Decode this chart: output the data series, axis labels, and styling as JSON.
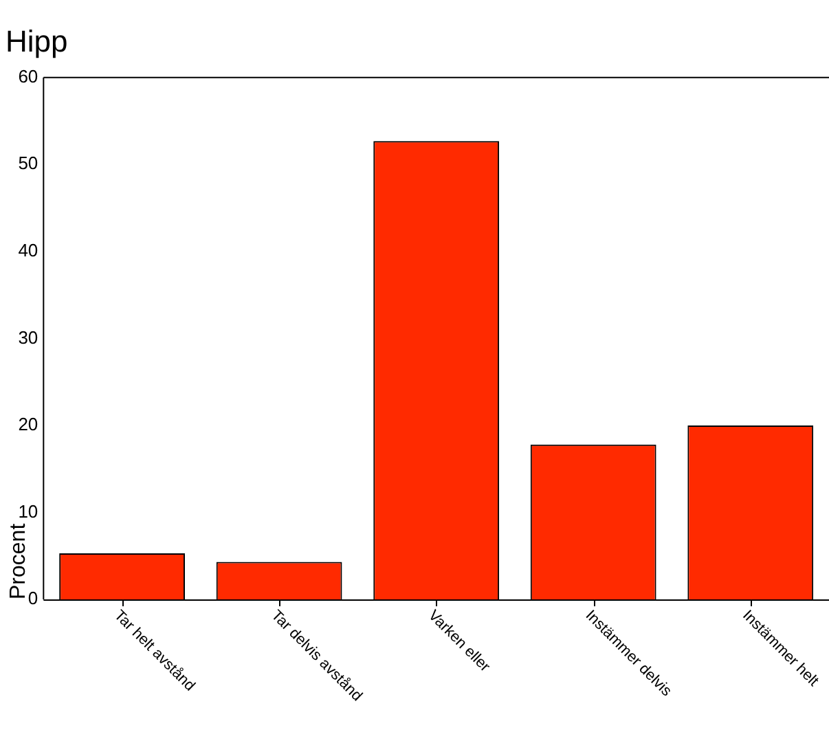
{
  "chart_data": {
    "type": "bar",
    "title": "Hipp",
    "ylabel": "Procent",
    "categories": [
      "Tar helt avstånd",
      "Tar delvis avstånd",
      "Varken eller",
      "Instämmer delvis",
      "Instämmer helt"
    ],
    "values": [
      5.3,
      4.3,
      52.7,
      17.8,
      20.0
    ],
    "color": "#ff2a00",
    "ylim": [
      0,
      60
    ],
    "yticks": [
      0,
      10,
      20,
      30,
      40,
      50,
      60
    ],
    "grid": false,
    "legend": false
  }
}
